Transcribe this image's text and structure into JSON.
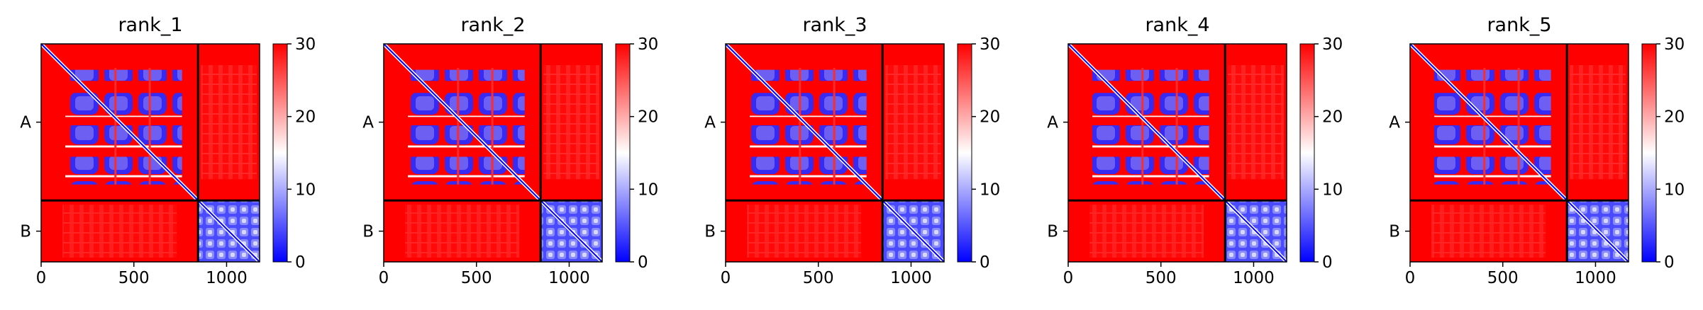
{
  "figure": {
    "background": "#ffffff"
  },
  "chart_data": [
    {
      "type": "heatmap",
      "title": "rank_1",
      "x_ticks": [
        0,
        500,
        1000
      ],
      "xlim": [
        0,
        1178
      ],
      "y_ticks": [
        "A",
        "B"
      ],
      "chain_boundary": 846,
      "chain_lengths": {
        "A": 846,
        "B": 332
      },
      "colorbar": {
        "ticks": [
          0,
          10,
          20,
          30
        ],
        "range": [
          0,
          30
        ],
        "colormap": "bwr"
      },
      "colors": {
        "high": "#ff0000",
        "mid": "#ffffff",
        "low": "#0000ff"
      }
    },
    {
      "type": "heatmap",
      "title": "rank_2",
      "x_ticks": [
        0,
        500,
        1000
      ],
      "xlim": [
        0,
        1178
      ],
      "y_ticks": [
        "A",
        "B"
      ],
      "chain_boundary": 846,
      "chain_lengths": {
        "A": 846,
        "B": 332
      },
      "colorbar": {
        "ticks": [
          0,
          10,
          20,
          30
        ],
        "range": [
          0,
          30
        ],
        "colormap": "bwr"
      },
      "colors": {
        "high": "#ff0000",
        "mid": "#ffffff",
        "low": "#0000ff"
      }
    },
    {
      "type": "heatmap",
      "title": "rank_3",
      "x_ticks": [
        0,
        500,
        1000
      ],
      "xlim": [
        0,
        1178
      ],
      "y_ticks": [
        "A",
        "B"
      ],
      "chain_boundary": 846,
      "chain_lengths": {
        "A": 846,
        "B": 332
      },
      "colorbar": {
        "ticks": [
          0,
          10,
          20,
          30
        ],
        "range": [
          0,
          30
        ],
        "colormap": "bwr"
      },
      "colors": {
        "high": "#ff0000",
        "mid": "#ffffff",
        "low": "#0000ff"
      }
    },
    {
      "type": "heatmap",
      "title": "rank_4",
      "x_ticks": [
        0,
        500,
        1000
      ],
      "xlim": [
        0,
        1178
      ],
      "y_ticks": [
        "A",
        "B"
      ],
      "chain_boundary": 846,
      "chain_lengths": {
        "A": 846,
        "B": 332
      },
      "colorbar": {
        "ticks": [
          0,
          10,
          20,
          30
        ],
        "range": [
          0,
          30
        ],
        "colormap": "bwr"
      },
      "colors": {
        "high": "#ff0000",
        "mid": "#ffffff",
        "low": "#0000ff"
      }
    },
    {
      "type": "heatmap",
      "title": "rank_5",
      "x_ticks": [
        0,
        500,
        1000
      ],
      "xlim": [
        0,
        1178
      ],
      "y_ticks": [
        "A",
        "B"
      ],
      "chain_boundary": 846,
      "chain_lengths": {
        "A": 846,
        "B": 332
      },
      "colorbar": {
        "ticks": [
          0,
          10,
          20,
          30
        ],
        "range": [
          0,
          30
        ],
        "colormap": "bwr"
      },
      "colors": {
        "high": "#ff0000",
        "mid": "#ffffff",
        "low": "#0000ff"
      }
    }
  ]
}
